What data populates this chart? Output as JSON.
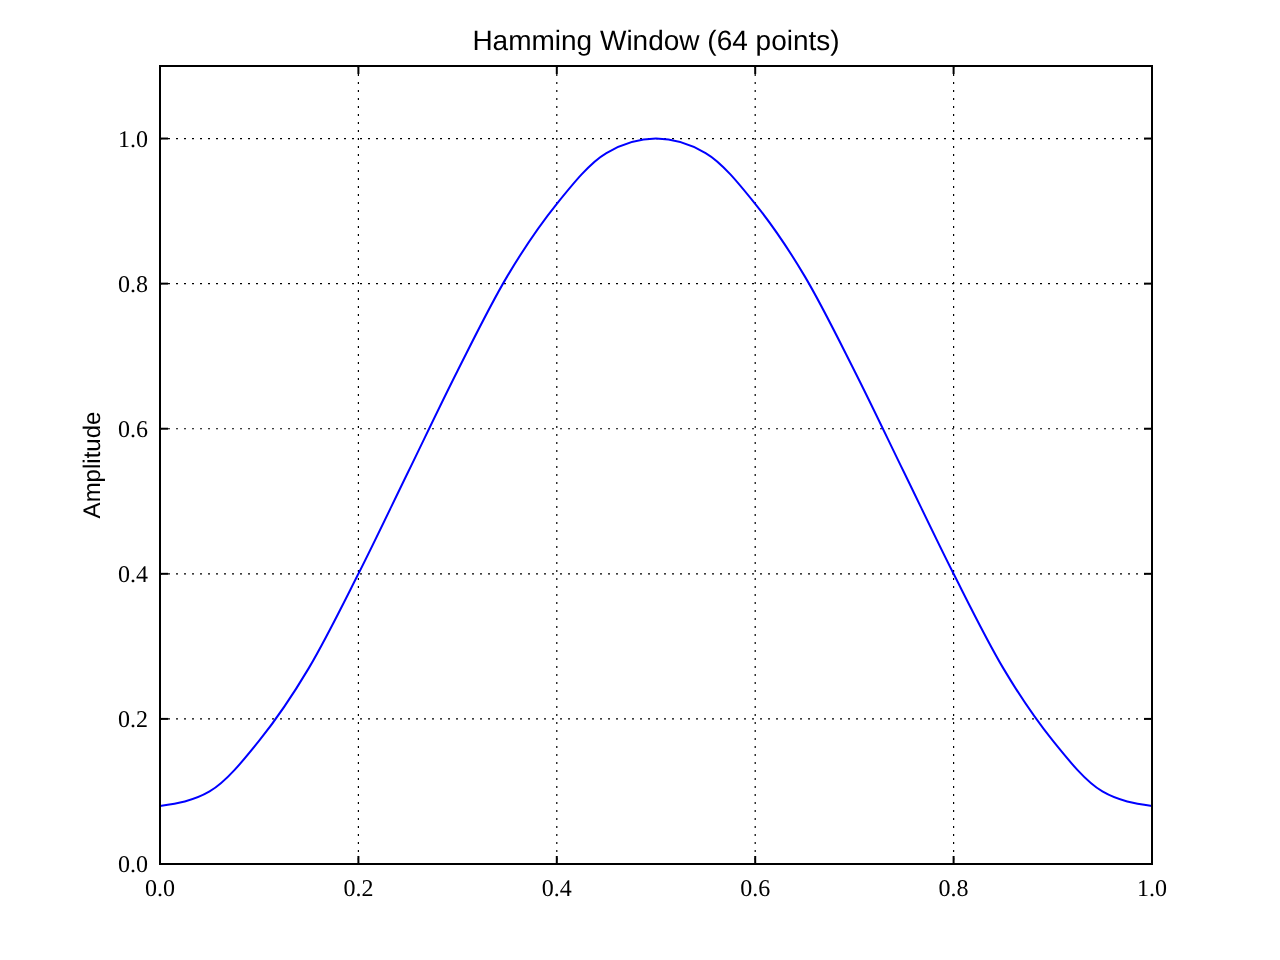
{
  "chart_data": {
    "type": "line",
    "title": "Hamming Window (64 points)",
    "ylabel": "Amplitude",
    "x": [
      0,
      0.05,
      0.1,
      0.15,
      0.2,
      0.25,
      0.3,
      0.35,
      0.4,
      0.45,
      0.5,
      0.55,
      0.6,
      0.65,
      0.7,
      0.75,
      0.8,
      0.85,
      0.9,
      0.95,
      1
    ],
    "series": [
      {
        "color": "#0000ff",
        "values": [
          0.08,
          0.1,
          0.17,
          0.27,
          0.4,
          0.54,
          0.68,
          0.81,
          0.91,
          0.98,
          1.0,
          0.98,
          0.91,
          0.81,
          0.68,
          0.54,
          0.4,
          0.27,
          0.17,
          0.1,
          0.08
        ]
      }
    ],
    "xlim": [
      0,
      1
    ],
    "ylim": [
      0,
      1.1
    ],
    "xticks": [
      {
        "value": 0,
        "label": "0.0"
      },
      {
        "value": 0.2,
        "label": "0.2"
      },
      {
        "value": 0.4,
        "label": "0.4"
      },
      {
        "value": 0.6,
        "label": "0.6"
      },
      {
        "value": 0.8,
        "label": "0.8"
      },
      {
        "value": 1,
        "label": "1.0"
      }
    ],
    "yticks": [
      {
        "value": 0,
        "label": "0.0"
      },
      {
        "value": 0.2,
        "label": "0.2"
      },
      {
        "value": 0.4,
        "label": "0.4"
      },
      {
        "value": 0.6,
        "label": "0.6"
      },
      {
        "value": 0.8,
        "label": "0.8"
      },
      {
        "value": 1,
        "label": "1.0"
      }
    ],
    "grid": true,
    "line_style": "solid",
    "marker": "none"
  }
}
